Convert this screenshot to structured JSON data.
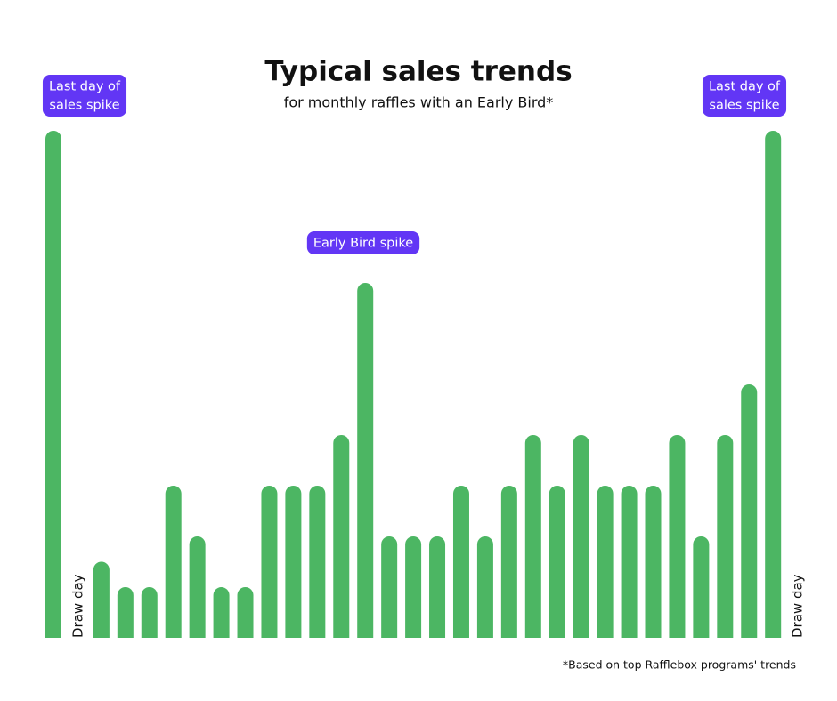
{
  "chart_data": {
    "type": "bar",
    "title": "Typical sales trends",
    "subtitle": "for monthly raffles with an Early Bird*",
    "categories": [
      null,
      "Draw day",
      null,
      null,
      null,
      null,
      null,
      null,
      null,
      null,
      null,
      null,
      null,
      null,
      null,
      null,
      null,
      null,
      null,
      null,
      null,
      null,
      null,
      null,
      null,
      null,
      null,
      null,
      null,
      null,
      null,
      "Draw day"
    ],
    "values": [
      20,
      null,
      3,
      2,
      2,
      6,
      4,
      2,
      2,
      6,
      6,
      6,
      8,
      14,
      4,
      4,
      4,
      6,
      4,
      6,
      8,
      6,
      8,
      6,
      6,
      6,
      8,
      4,
      8,
      10,
      20,
      null
    ],
    "color": "#4cb663",
    "annotations": [
      [
        "Last day of",
        "sales spike"
      ],
      [
        "Early Bird spike"
      ],
      [
        "Last day of",
        "sales spike"
      ]
    ],
    "annotation_color": "#6236f5",
    "footnote": "*Based on top Rafflebox programs' trends"
  }
}
